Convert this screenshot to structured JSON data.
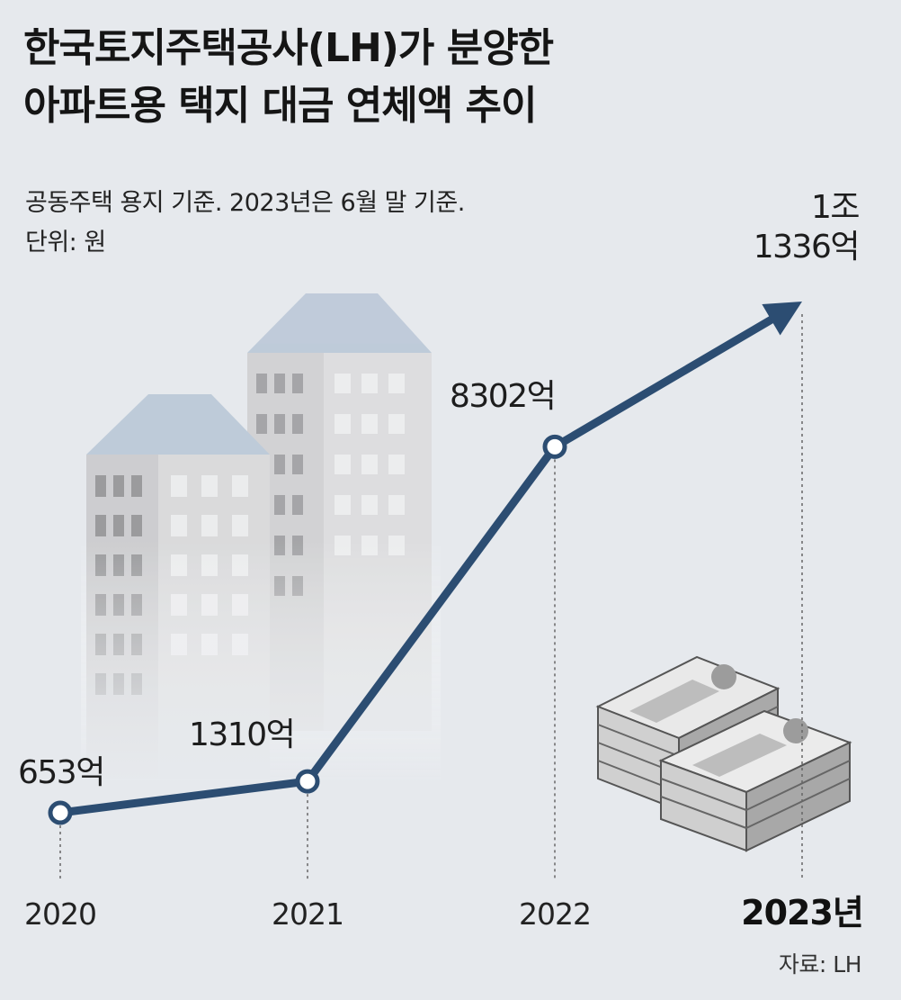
{
  "title_lines": [
    "한국토지주택공사(LH)가 분양한",
    "아파트용 택지 대금 연체액 추이"
  ],
  "subtitle_lines": [
    "공동주택 용지 기준. 2023년은 6월 말 기준.",
    "단위: 원"
  ],
  "source": "자료: LH",
  "colors": {
    "line": "#2c4d72",
    "background": "#e6e9ed"
  },
  "chart_data": {
    "type": "line",
    "categories": [
      "2020",
      "2021",
      "2022",
      "2023년"
    ],
    "values": [
      653,
      1310,
      8302,
      11336
    ],
    "labels": [
      "653억",
      "1310억",
      "8302억",
      "1조\n1336억"
    ],
    "unit": "억 원",
    "last_point": "arrow"
  }
}
